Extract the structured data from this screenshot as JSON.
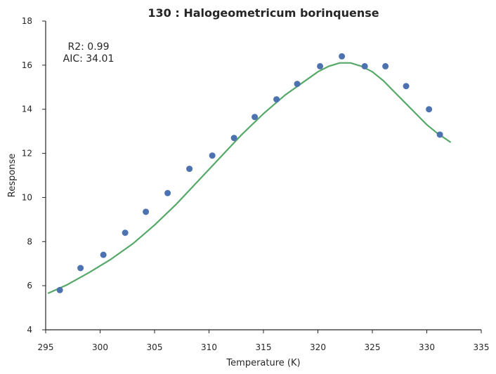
{
  "chart_data": {
    "type": "scatter",
    "title": "130 : Halogeometricum borinquense",
    "xlabel": "Temperature (K)",
    "ylabel": "Response",
    "xlim": [
      295,
      335
    ],
    "ylim": [
      4,
      18
    ],
    "xticks": [
      "295",
      "300",
      "305",
      "310",
      "315",
      "320",
      "325",
      "330",
      "335"
    ],
    "yticks": [
      "4",
      "6",
      "8",
      "10",
      "12",
      "14",
      "16",
      "18"
    ],
    "grid": false,
    "annotations": [
      "R2: 0.99",
      "AIC: 34.01"
    ],
    "series": [
      {
        "kind": "points",
        "color": "#4c72b0",
        "x": [
          296.3,
          298.2,
          300.3,
          302.3,
          304.2,
          306.2,
          308.2,
          310.3,
          312.3,
          314.2,
          316.2,
          318.1,
          320.2,
          322.2,
          324.3,
          326.2,
          328.1,
          330.2,
          331.2
        ],
        "y": [
          5.8,
          6.8,
          7.4,
          8.4,
          9.35,
          10.2,
          11.3,
          11.9,
          12.7,
          13.65,
          14.45,
          15.15,
          15.95,
          16.4,
          15.95,
          15.95,
          15.05,
          14.0,
          12.85
        ]
      },
      {
        "kind": "fit",
        "color": "#55a868",
        "x": [
          295.2,
          297,
          299,
          301,
          303,
          305,
          307,
          309,
          311,
          313,
          315,
          317,
          319,
          320,
          321,
          322,
          323,
          324,
          325,
          326,
          327,
          328,
          329,
          330,
          331,
          332.2
        ],
        "y": [
          5.65,
          6.05,
          6.6,
          7.2,
          7.9,
          8.75,
          9.7,
          10.75,
          11.8,
          12.85,
          13.8,
          14.65,
          15.35,
          15.7,
          15.95,
          16.1,
          16.1,
          15.95,
          15.7,
          15.3,
          14.8,
          14.3,
          13.8,
          13.3,
          12.9,
          12.5
        ]
      }
    ]
  }
}
